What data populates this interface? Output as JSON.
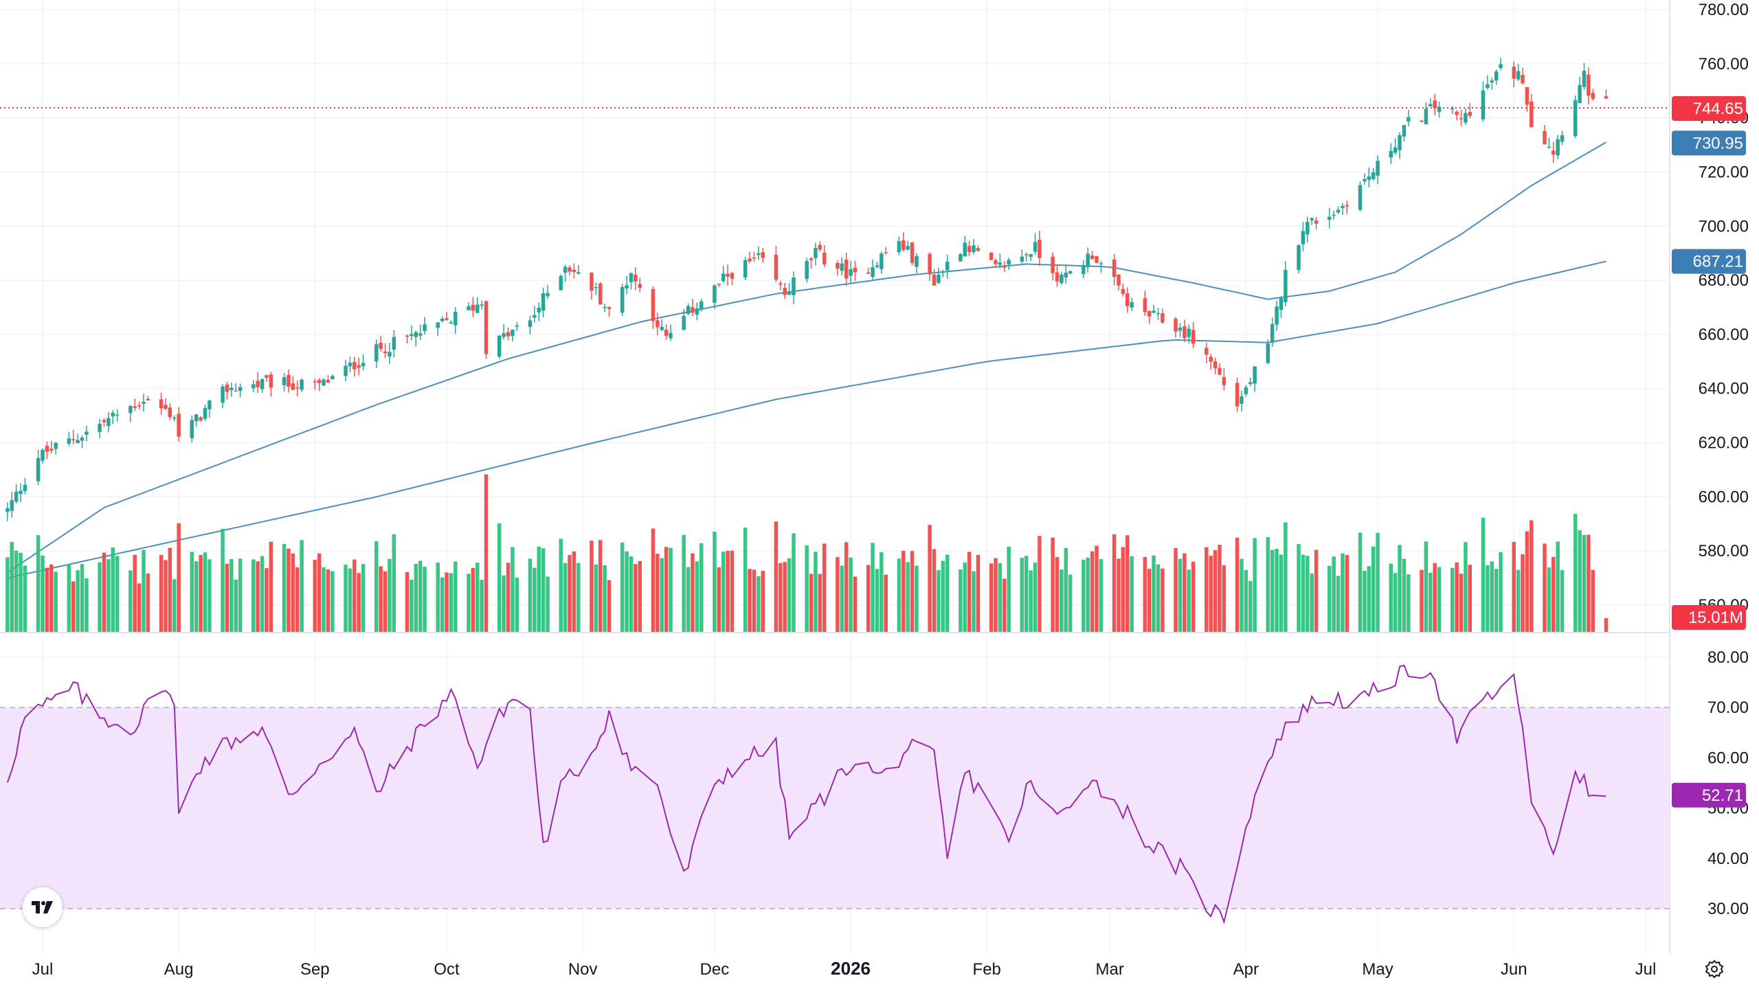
{
  "chart_data": {
    "type": "candlestick",
    "title": "",
    "price_axis": {
      "ticks": [
        "780.00",
        "760.00",
        "740.00",
        "720.00",
        "700.00",
        "680.00",
        "660.00",
        "640.00",
        "620.00",
        "600.00",
        "580.00",
        "560.00"
      ],
      "range": [
        554,
        782
      ]
    },
    "time_axis": {
      "labels": [
        {
          "text": "Jul",
          "date": "2025-07-01"
        },
        {
          "text": "Aug",
          "date": "2025-08-01"
        },
        {
          "text": "Sep",
          "date": "2025-09-01"
        },
        {
          "text": "Oct",
          "date": "2025-10-01"
        },
        {
          "text": "Nov",
          "date": "2025-11-01"
        },
        {
          "text": "Dec",
          "date": "2025-12-01"
        },
        {
          "text": "2026",
          "date": "2026-01-01",
          "bold": true
        },
        {
          "text": "Feb",
          "date": "2026-02-01"
        },
        {
          "text": "Mar",
          "date": "2026-03-01"
        },
        {
          "text": "Apr",
          "date": "2026-04-01"
        },
        {
          "text": "May",
          "date": "2026-05-01"
        },
        {
          "text": "Jun",
          "date": "2026-06-01"
        },
        {
          "text": "Jul",
          "date": "2026-07-01"
        }
      ]
    },
    "price_anchors": [
      [
        "2025-06-23",
        595
      ],
      [
        "2025-06-30",
        615
      ],
      [
        "2025-07-10",
        623
      ],
      [
        "2025-07-24",
        636
      ],
      [
        "2025-07-31",
        630
      ],
      [
        "2025-08-01",
        622
      ],
      [
        "2025-08-12",
        640
      ],
      [
        "2025-08-22",
        642
      ],
      [
        "2025-09-02",
        641
      ],
      [
        "2025-09-15",
        654
      ],
      [
        "2025-09-30",
        664
      ],
      [
        "2025-10-09",
        672
      ],
      [
        "2025-10-10",
        655
      ],
      [
        "2025-10-20",
        665
      ],
      [
        "2025-10-28",
        686
      ],
      [
        "2025-11-04",
        676
      ],
      [
        "2025-11-07",
        668
      ],
      [
        "2025-11-12",
        683
      ],
      [
        "2025-11-20",
        658
      ],
      [
        "2025-11-25",
        668
      ],
      [
        "2025-12-05",
        683
      ],
      [
        "2025-12-11",
        688
      ],
      [
        "2025-12-17",
        675
      ],
      [
        "2025-12-24",
        690
      ],
      [
        "2026-01-02",
        681
      ],
      [
        "2026-01-12",
        694
      ],
      [
        "2026-01-20",
        680
      ],
      [
        "2026-01-27",
        694
      ],
      [
        "2026-02-03",
        684
      ],
      [
        "2026-02-12",
        692
      ],
      [
        "2026-02-18",
        680
      ],
      [
        "2026-02-25",
        690
      ],
      [
        "2026-03-06",
        670
      ],
      [
        "2026-03-13",
        665
      ],
      [
        "2026-03-19",
        660
      ],
      [
        "2026-03-24",
        650
      ],
      [
        "2026-03-30",
        634
      ],
      [
        "2026-04-06",
        655
      ],
      [
        "2026-04-10",
        682
      ],
      [
        "2026-04-14",
        700
      ],
      [
        "2026-04-22",
        706
      ],
      [
        "2026-05-01",
        722
      ],
      [
        "2026-05-08",
        738
      ],
      [
        "2026-05-15",
        745
      ],
      [
        "2026-05-20",
        739
      ],
      [
        "2026-05-29",
        758
      ],
      [
        "2026-06-03",
        755
      ],
      [
        "2026-06-05",
        738
      ],
      [
        "2026-06-10",
        728
      ],
      [
        "2026-06-15",
        748
      ],
      [
        "2026-06-17",
        755
      ],
      [
        "2026-06-19",
        745
      ],
      [
        "2026-06-22",
        745
      ]
    ],
    "last_price": "744.65",
    "moving_averages": [
      {
        "label": "730.95",
        "value": 730.95,
        "color": "#4a8fbf",
        "anchors": [
          [
            "2025-06-23",
            572
          ],
          [
            "2025-07-15",
            596
          ],
          [
            "2025-08-15",
            615
          ],
          [
            "2025-09-15",
            634
          ],
          [
            "2025-10-15",
            651
          ],
          [
            "2025-11-15",
            665
          ],
          [
            "2025-12-15",
            675
          ],
          [
            "2026-01-15",
            682
          ],
          [
            "2026-02-10",
            686
          ],
          [
            "2026-03-01",
            685
          ],
          [
            "2026-03-20",
            679
          ],
          [
            "2026-04-06",
            673
          ],
          [
            "2026-04-20",
            676
          ],
          [
            "2026-05-05",
            683
          ],
          [
            "2026-05-20",
            697
          ],
          [
            "2026-06-05",
            715
          ],
          [
            "2026-06-22",
            731
          ]
        ]
      },
      {
        "label": "687.21",
        "value": 687.21,
        "color": "#4a8fbf",
        "anchors": [
          [
            "2025-06-23",
            570
          ],
          [
            "2025-08-01",
            584
          ],
          [
            "2025-09-15",
            600
          ],
          [
            "2025-11-01",
            619
          ],
          [
            "2025-12-15",
            636
          ],
          [
            "2026-02-01",
            650
          ],
          [
            "2026-03-15",
            658
          ],
          [
            "2026-04-06",
            657
          ],
          [
            "2026-05-01",
            664
          ],
          [
            "2026-06-01",
            679
          ],
          [
            "2026-06-22",
            687
          ]
        ]
      }
    ],
    "volume": {
      "last_label": "15.01M",
      "up_color": "#26a69a",
      "down_color": "#ef5350"
    },
    "rsi": {
      "ticks": [
        "80.00",
        "70.00",
        "60.00",
        "50.00",
        "40.00",
        "30.00"
      ],
      "range": [
        27,
        82
      ],
      "overbought": 70,
      "oversold": 30,
      "last_label": "52.71",
      "color": "#9c27b0",
      "band_color": "#f3e5fd",
      "anchors": [
        [
          "2025-06-23",
          56
        ],
        [
          "2025-06-27",
          68
        ],
        [
          "2025-07-03",
          71
        ],
        [
          "2025-07-08",
          74
        ],
        [
          "2025-07-14",
          68
        ],
        [
          "2025-07-22",
          66
        ],
        [
          "2025-07-28",
          75
        ],
        [
          "2025-07-31",
          70
        ],
        [
          "2025-08-01",
          48
        ],
        [
          "2025-08-05",
          58
        ],
        [
          "2025-08-12",
          63
        ],
        [
          "2025-08-20",
          66
        ],
        [
          "2025-08-26",
          52
        ],
        [
          "2025-09-02",
          59
        ],
        [
          "2025-09-10",
          65
        ],
        [
          "2025-09-15",
          53
        ],
        [
          "2025-09-22",
          62
        ],
        [
          "2025-09-29",
          70
        ],
        [
          "2025-10-03",
          73
        ],
        [
          "2025-10-08",
          58
        ],
        [
          "2025-10-14",
          70
        ],
        [
          "2025-10-17",
          72
        ],
        [
          "2025-10-20",
          69
        ],
        [
          "2025-10-23",
          42
        ],
        [
          "2025-10-27",
          54
        ],
        [
          "2025-11-03",
          61
        ],
        [
          "2025-11-07",
          69
        ],
        [
          "2025-11-12",
          58
        ],
        [
          "2025-11-18",
          55
        ],
        [
          "2025-11-21",
          45
        ],
        [
          "2025-11-24",
          36
        ],
        [
          "2025-12-01",
          55
        ],
        [
          "2025-12-08",
          60
        ],
        [
          "2025-12-15",
          62
        ],
        [
          "2025-12-18",
          44
        ],
        [
          "2026-01-02",
          60
        ],
        [
          "2026-01-08",
          56
        ],
        [
          "2026-01-14",
          62
        ],
        [
          "2026-01-20",
          60
        ],
        [
          "2026-01-23",
          40
        ],
        [
          "2026-01-27",
          57
        ],
        [
          "2026-02-03",
          50
        ],
        [
          "2026-02-06",
          42
        ],
        [
          "2026-02-10",
          55
        ],
        [
          "2026-02-17",
          48
        ],
        [
          "2026-02-24",
          56
        ],
        [
          "2026-03-04",
          50
        ],
        [
          "2026-03-10",
          43
        ],
        [
          "2026-03-17",
          38
        ],
        [
          "2026-03-20",
          34
        ],
        [
          "2026-03-24",
          30
        ],
        [
          "2026-03-27",
          28
        ],
        [
          "2026-04-01",
          47
        ],
        [
          "2026-04-07",
          62
        ],
        [
          "2026-04-14",
          70
        ],
        [
          "2026-04-20",
          72
        ],
        [
          "2026-04-27",
          71
        ],
        [
          "2026-05-05",
          76
        ],
        [
          "2026-05-13",
          78
        ],
        [
          "2026-05-19",
          64
        ],
        [
          "2026-05-26",
          72
        ],
        [
          "2026-06-01",
          75
        ],
        [
          "2026-06-03",
          67
        ],
        [
          "2026-06-05",
          50
        ],
        [
          "2026-06-10",
          41
        ],
        [
          "2026-06-15",
          58
        ],
        [
          "2026-06-17",
          55
        ],
        [
          "2026-06-19",
          51
        ],
        [
          "2026-06-22",
          53
        ]
      ]
    }
  },
  "colors": {
    "up": "#26a69a",
    "down": "#ef5350",
    "axis_text": "#131722",
    "grid": "#f0f3fa",
    "last_price_tag": "#f23645",
    "ma_tag": "#3d7fb5",
    "rsi_tag": "#9c27b0"
  },
  "icons": {
    "logo": "tradingview-logo-icon",
    "settings": "settings-gear-icon"
  }
}
